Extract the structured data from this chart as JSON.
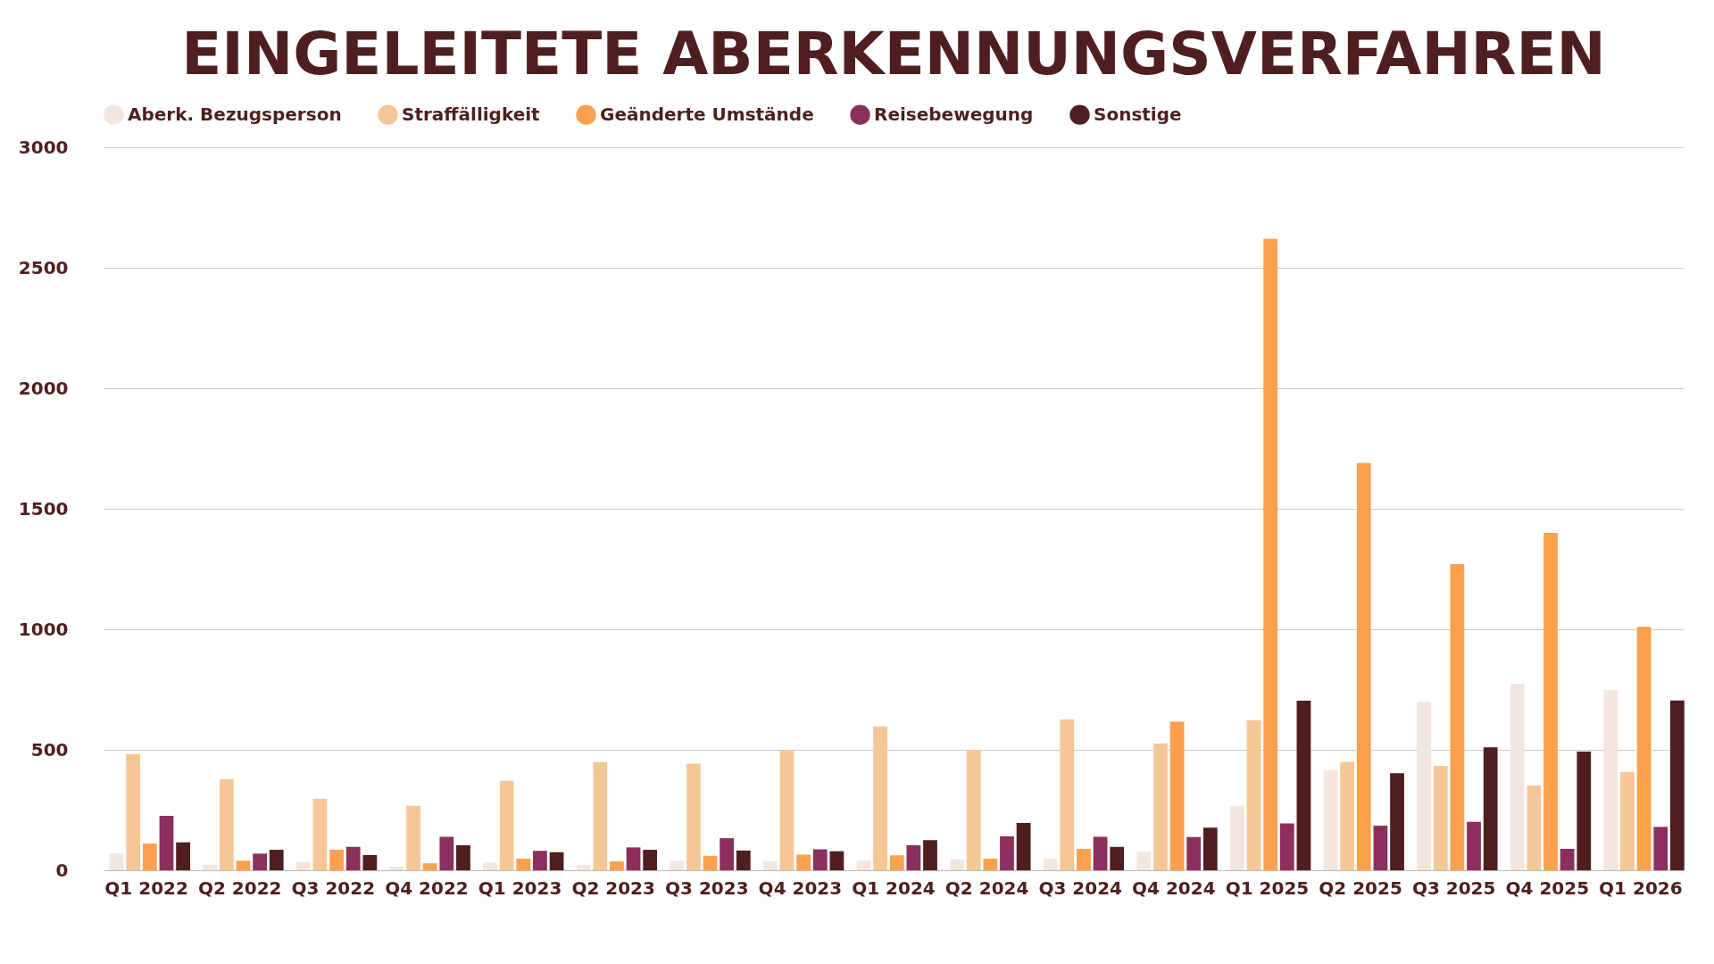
{
  "chart_data": {
    "type": "bar",
    "title": "EINGELEITETE ABERKENNUNGSVERFAHREN",
    "categories": [
      "Q1 2022",
      "Q2 2022",
      "Q3 2022",
      "Q4 2022",
      "Q1 2023",
      "Q2 2023",
      "Q3 2023",
      "Q4 2023",
      "Q1 2024",
      "Q2 2024",
      "Q3 2024",
      "Q4 2024",
      "Q1 2025",
      "Q2 2025",
      "Q3 2025",
      "Q4 2025",
      "Q1 2026"
    ],
    "series": [
      {
        "name": "Aberk. Bezugsperson",
        "color": "#f3e6df",
        "values": [
          70,
          23,
          34,
          15,
          31,
          22,
          40,
          37,
          41,
          45,
          47,
          78,
          268,
          415,
          699,
          774,
          748
        ]
      },
      {
        "name": "Straffälligkeit",
        "color": "#f5c797",
        "values": [
          482,
          378,
          296,
          268,
          371,
          449,
          443,
          500,
          597,
          500,
          626,
          526,
          622,
          450,
          433,
          352,
          408
        ]
      },
      {
        "name": "Geänderte Umstände",
        "color": "#fba04d",
        "values": [
          111,
          40,
          85,
          29,
          48,
          37,
          60,
          65,
          62,
          48,
          89,
          617,
          2620,
          1690,
          1270,
          1400,
          1010
        ]
      },
      {
        "name": "Reisebewegung",
        "color": "#8b2f5c",
        "values": [
          226,
          69,
          97,
          139,
          81,
          95,
          133,
          87,
          104,
          141,
          139,
          138,
          194,
          185,
          201,
          89,
          180
        ]
      },
      {
        "name": "Sonstige",
        "color": "#4f1e1e",
        "values": [
          116,
          85,
          63,
          104,
          75,
          85,
          82,
          79,
          125,
          196,
          97,
          177,
          704,
          403,
          510,
          493,
          705
        ]
      }
    ],
    "ylim": [
      0,
      3000
    ],
    "yticks": [
      0,
      500,
      1000,
      1500,
      2000,
      2500,
      3000
    ],
    "grid": "y",
    "legend": "top"
  }
}
